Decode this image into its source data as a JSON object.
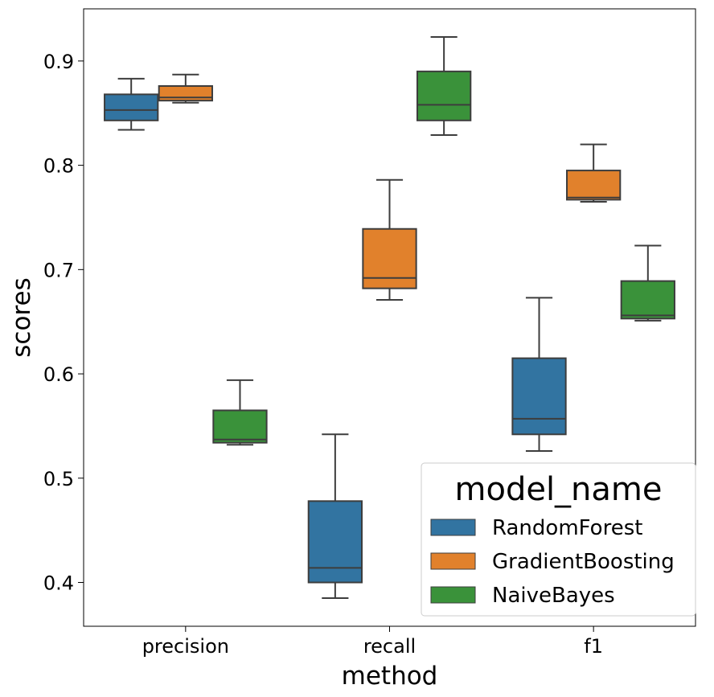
{
  "chart_data": {
    "type": "box",
    "xlabel": "method",
    "ylabel": "scores",
    "categories": [
      "precision",
      "recall",
      "f1"
    ],
    "ylim": [
      0.358,
      0.95
    ],
    "yticks": [
      0.4,
      0.5,
      0.6,
      0.7,
      0.8,
      0.9
    ],
    "ytick_labels": [
      "0.4",
      "0.5",
      "0.6",
      "0.7",
      "0.8",
      "0.9"
    ],
    "grid": false,
    "legend": {
      "title": "model_name",
      "position": "lower-right"
    },
    "series": [
      {
        "name": "RandomForest",
        "color": "#3274a1",
        "boxes": [
          {
            "whisker_low": 0.834,
            "q1": 0.843,
            "median": 0.853,
            "q3": 0.868,
            "whisker_high": 0.883
          },
          {
            "whisker_low": 0.385,
            "q1": 0.4,
            "median": 0.414,
            "q3": 0.478,
            "whisker_high": 0.542
          },
          {
            "whisker_low": 0.526,
            "q1": 0.542,
            "median": 0.557,
            "q3": 0.615,
            "whisker_high": 0.673
          }
        ]
      },
      {
        "name": "GradientBoosting",
        "color": "#e1812c",
        "boxes": [
          {
            "whisker_low": 0.86,
            "q1": 0.862,
            "median": 0.865,
            "q3": 0.876,
            "whisker_high": 0.887
          },
          {
            "whisker_low": 0.671,
            "q1": 0.682,
            "median": 0.692,
            "q3": 0.739,
            "whisker_high": 0.786
          },
          {
            "whisker_low": 0.765,
            "q1": 0.767,
            "median": 0.769,
            "q3": 0.795,
            "whisker_high": 0.82
          }
        ]
      },
      {
        "name": "NaiveBayes",
        "color": "#3a923a",
        "boxes": [
          {
            "whisker_low": 0.532,
            "q1": 0.534,
            "median": 0.537,
            "q3": 0.565,
            "whisker_high": 0.594
          },
          {
            "whisker_low": 0.829,
            "q1": 0.843,
            "median": 0.858,
            "q3": 0.89,
            "whisker_high": 0.923
          },
          {
            "whisker_low": 0.651,
            "q1": 0.653,
            "median": 0.656,
            "q3": 0.689,
            "whisker_high": 0.723
          }
        ]
      }
    ]
  }
}
